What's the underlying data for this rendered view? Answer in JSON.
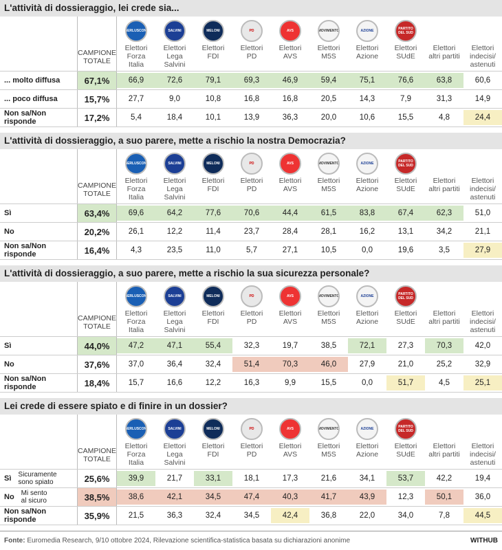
{
  "columns_header": {
    "total": "CAMPIONE\nTOTALE",
    "parties": [
      "Elettori\nForza\nItalia",
      "Elettori\nLega\nSalvini",
      "Elettori\nFDI",
      "Elettori\nPD",
      "Elettori\nAVS",
      "Elettori\nM5S",
      "Elettori\nAzione",
      "Elettori\nSUdE",
      "Elettori\naltri partiti",
      "Elettori\nindecisi/\nastenuti"
    ],
    "logos": [
      "BERLUSCONI",
      "SALVINI",
      "MELONI",
      "PD",
      "AVS",
      "MOVIMENTO",
      "AZIONE",
      "PARTITO DEL SUD"
    ]
  },
  "sections": [
    {
      "title": "L'attività di dossieraggio, lei crede sia...",
      "rows": [
        {
          "label": "... molto diffusa",
          "total": "67,1%",
          "total_color": "#d5e8c9",
          "values": [
            "66,9",
            "72,6",
            "79,1",
            "69,3",
            "46,9",
            "59,4",
            "75,1",
            "76,6",
            "63,8",
            "60,6"
          ],
          "colors": [
            "#d5e8c9",
            "#d5e8c9",
            "#d5e8c9",
            "#d5e8c9",
            "#d5e8c9",
            "#d5e8c9",
            "#d5e8c9",
            "#d5e8c9",
            "#d5e8c9",
            null
          ]
        },
        {
          "label": "... poco diffusa",
          "total": "15,7%",
          "total_color": null,
          "values": [
            "27,7",
            "9,0",
            "10,8",
            "16,8",
            "16,8",
            "20,5",
            "14,3",
            "7,9",
            "31,3",
            "14,9"
          ],
          "colors": [
            null,
            null,
            null,
            null,
            null,
            null,
            null,
            null,
            null,
            null
          ]
        },
        {
          "label": "Non sa/Non risponde",
          "total": "17,2%",
          "total_color": null,
          "values": [
            "5,4",
            "18,4",
            "10,1",
            "13,9",
            "36,3",
            "20,0",
            "10,6",
            "15,5",
            "4,8",
            "24,4"
          ],
          "colors": [
            null,
            null,
            null,
            null,
            null,
            null,
            null,
            null,
            null,
            "#f7efc3"
          ]
        }
      ]
    },
    {
      "title": "L'attività di dossieraggio, a suo parere, mette a rischio la nostra Democrazia?",
      "rows": [
        {
          "label": "Sì",
          "total": "63,4%",
          "total_color": "#d5e8c9",
          "values": [
            "69,6",
            "64,2",
            "77,6",
            "70,6",
            "44,4",
            "61,5",
            "83,8",
            "67,4",
            "62,3",
            "51,0"
          ],
          "colors": [
            "#d5e8c9",
            "#d5e8c9",
            "#d5e8c9",
            "#d5e8c9",
            "#d5e8c9",
            "#d5e8c9",
            "#d5e8c9",
            "#d5e8c9",
            "#d5e8c9",
            null
          ]
        },
        {
          "label": "No",
          "total": "20,2%",
          "total_color": null,
          "values": [
            "26,1",
            "12,2",
            "11,4",
            "23,7",
            "28,4",
            "28,1",
            "16,2",
            "13,1",
            "34,2",
            "21,1"
          ],
          "colors": [
            null,
            null,
            null,
            null,
            null,
            null,
            null,
            null,
            null,
            null
          ]
        },
        {
          "label": "Non sa/Non risponde",
          "total": "16,4%",
          "total_color": null,
          "values": [
            "4,3",
            "23,5",
            "11,0",
            "5,7",
            "27,1",
            "10,5",
            "0,0",
            "19,6",
            "3,5",
            "27,9"
          ],
          "colors": [
            null,
            null,
            null,
            null,
            null,
            null,
            null,
            null,
            null,
            "#f7efc3"
          ]
        }
      ]
    },
    {
      "title": "L'attività di dossieraggio, a suo parere, mette a rischio la sua sicurezza personale?",
      "rows": [
        {
          "label": "Sì",
          "total": "44,0%",
          "total_color": "#d5e8c9",
          "values": [
            "47,2",
            "47,1",
            "55,4",
            "32,3",
            "19,7",
            "38,5",
            "72,1",
            "27,3",
            "70,3",
            "42,0"
          ],
          "colors": [
            "#d5e8c9",
            "#d5e8c9",
            "#d5e8c9",
            null,
            null,
            null,
            "#d5e8c9",
            null,
            "#d5e8c9",
            null
          ]
        },
        {
          "label": "No",
          "total": "37,6%",
          "total_color": null,
          "values": [
            "37,0",
            "36,4",
            "32,4",
            "51,4",
            "70,3",
            "46,0",
            "27,9",
            "21,0",
            "25,2",
            "32,9"
          ],
          "colors": [
            null,
            null,
            null,
            "#f0cbbd",
            "#f0cbbd",
            "#f0cbbd",
            null,
            null,
            null,
            null
          ]
        },
        {
          "label": "Non sa/Non risponde",
          "total": "18,4%",
          "total_color": null,
          "values": [
            "15,7",
            "16,6",
            "12,2",
            "16,3",
            "9,9",
            "15,5",
            "0,0",
            "51,7",
            "4,5",
            "25,1"
          ],
          "colors": [
            null,
            null,
            null,
            null,
            null,
            null,
            null,
            "#f7efc3",
            null,
            "#f7efc3"
          ]
        }
      ]
    },
    {
      "title": "Lei crede di essere spiato e di finire in un dossier?",
      "rows": [
        {
          "label": "Sì",
          "sublabel": "Sicuramente\nsono spiato",
          "total": "25,6%",
          "total_color": null,
          "values": [
            "39,9",
            "21,7",
            "33,1",
            "18,1",
            "17,3",
            "21,6",
            "34,1",
            "53,7",
            "42,2",
            "19,4"
          ],
          "colors": [
            "#d5e8c9",
            null,
            "#d5e8c9",
            null,
            null,
            null,
            null,
            "#d5e8c9",
            null,
            null
          ]
        },
        {
          "label": "No",
          "sublabel": "Mi sento\nal sicuro",
          "total": "38,5%",
          "total_color": "#f0cbbd",
          "values": [
            "38,6",
            "42,1",
            "34,5",
            "47,4",
            "40,3",
            "41,7",
            "43,9",
            "12,3",
            "50,1",
            "36,0"
          ],
          "colors": [
            "#f0cbbd",
            "#f0cbbd",
            "#f0cbbd",
            "#f0cbbd",
            "#f0cbbd",
            "#f0cbbd",
            "#f0cbbd",
            null,
            "#f0cbbd",
            null
          ]
        },
        {
          "label": "Non sa/Non risponde",
          "total": "35,9%",
          "total_color": null,
          "values": [
            "21,5",
            "36,3",
            "32,4",
            "34,5",
            "42,4",
            "36,8",
            "22,0",
            "34,0",
            "7,8",
            "44,5"
          ],
          "colors": [
            null,
            null,
            null,
            null,
            "#f7efc3",
            null,
            null,
            null,
            null,
            "#f7efc3"
          ]
        }
      ]
    }
  ],
  "footer": {
    "source_label": "Fonte:",
    "source": " Euromedia Research, 9/10 ottobre 2024, Rilevazione scientifica-statistica basata su dichiarazioni anonime",
    "brand": "WITHUB"
  }
}
